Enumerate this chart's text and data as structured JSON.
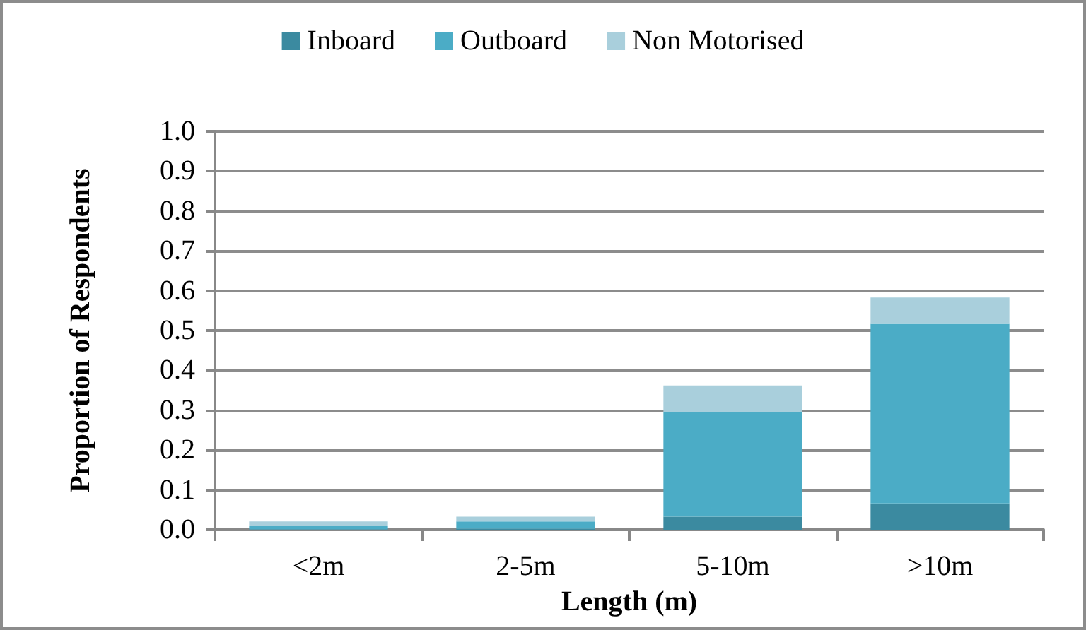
{
  "chart_data": {
    "type": "bar",
    "xlabel": "Length (m)",
    "ylabel": "Proportion of Respondents",
    "categories": [
      "<2m",
      "2-5m",
      "5-10m",
      ">10m"
    ],
    "series": [
      {
        "name": "Inboard",
        "color": "#3b8aa0",
        "values": [
          0.001,
          0.002,
          0.033,
          0.066
        ]
      },
      {
        "name": "Outboard",
        "color": "#4bacc6",
        "values": [
          0.008,
          0.019,
          0.263,
          0.451
        ]
      },
      {
        "name": "Non Motorised",
        "color": "#a9cfdc",
        "values": [
          0.012,
          0.012,
          0.066,
          0.066
        ]
      }
    ],
    "stacked": true,
    "ylim": [
      0,
      1
    ],
    "yticks": [
      {
        "value": 0,
        "label": "0.0"
      },
      {
        "value": 0.1,
        "label": "0.1"
      },
      {
        "value": 0.2,
        "label": "0.2"
      },
      {
        "value": 0.3,
        "label": "0.3"
      },
      {
        "value": 0.4,
        "label": "0.4"
      },
      {
        "value": 0.5,
        "label": "0.5"
      },
      {
        "value": 0.6,
        "label": "0.6"
      },
      {
        "value": 0.7,
        "label": "0.7"
      },
      {
        "value": 0.8,
        "label": "0.8"
      },
      {
        "value": 0.9,
        "label": "0.9"
      },
      {
        "value": 1,
        "label": "1.0"
      }
    ],
    "grid": "y",
    "legend": "top"
  }
}
